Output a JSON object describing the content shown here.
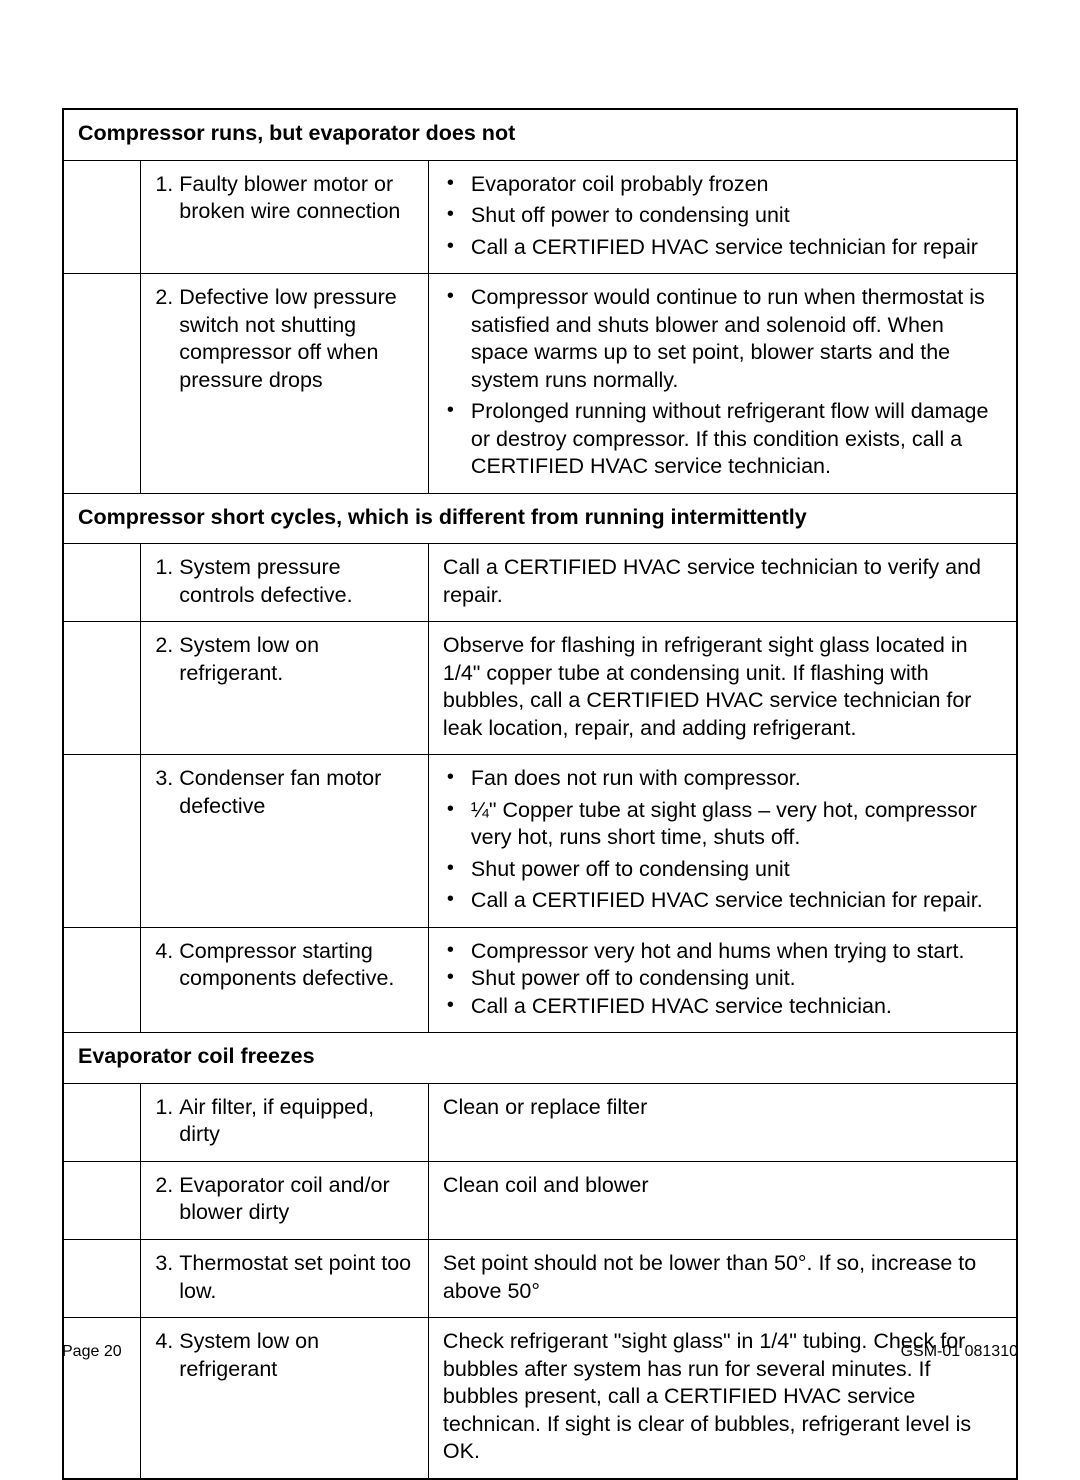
{
  "footer": {
    "left": "Page 20",
    "right": "GSM-01 081310"
  },
  "sections": [
    {
      "header": "Compressor runs, but evaporator does not",
      "rows": [
        {
          "num": "1.",
          "cause": "Faulty blower motor or broken wire connection",
          "action_type": "bullets",
          "bullets": [
            "Evaporator coil probably frozen",
            "Shut off power to condensing unit",
            "Call a CERTIFIED HVAC service technician for repair"
          ]
        },
        {
          "num": "2.",
          "cause": "Defective low pressure switch not shutting compressor off when pressure drops",
          "action_type": "bullets",
          "bullets": [
            "Compressor would continue to run when thermostat is satisfied and shuts blower and solenoid off. When space warms up to set point, blower starts and the system runs normally.",
            "Prolonged running without refrigerant flow will damage or destroy compressor. If this condition exists, call a CERTIFIED HVAC service technician."
          ]
        }
      ]
    },
    {
      "header": "Compressor short cycles, which is different from running intermittently",
      "rows": [
        {
          "num": "1.",
          "cause": "System pressure controls defective.",
          "action_type": "text",
          "text": "Call a CERTIFIED HVAC service technician to verify and repair."
        },
        {
          "num": "2.",
          "cause": "System low on refrigerant.",
          "action_type": "text",
          "text": "Observe for flashing in refrigerant sight glass located in 1/4\" copper tube at condensing unit. If flashing with bubbles, call a CERTIFIED HVAC service technician for leak location, repair, and adding refrigerant."
        },
        {
          "num": "3.",
          "cause": "Condenser fan motor defective",
          "action_type": "bullets",
          "bullets": [
            "Fan does not run with compressor.",
            "¼\" Copper tube at sight glass – very hot, compressor very hot, runs short time, shuts off.",
            "Shut power off to condensing unit",
            "Call a CERTIFIED HVAC service technician for repair."
          ]
        },
        {
          "num": "4.",
          "cause": "Compressor starting components defective.",
          "action_type": "bullets_tight",
          "bullets": [
            "Compressor very hot and hums when trying to start.",
            "Shut power off to condensing unit.",
            "Call a CERTIFIED HVAC service technician."
          ]
        }
      ]
    },
    {
      "header": "Evaporator coil freezes",
      "rows": [
        {
          "num": "1.",
          "cause": "Air filter, if equipped, dirty",
          "action_type": "text",
          "text": "Clean or replace filter"
        },
        {
          "num": "2.",
          "cause": "Evaporator coil and/or blower dirty",
          "action_type": "text",
          "text": "Clean coil and blower"
        },
        {
          "num": "3.",
          "cause": "Thermostat set point too low.",
          "action_type": "text",
          "text": "Set point should not be lower than 50°. If so, increase to above 50°"
        },
        {
          "num": "4.",
          "cause": "System low on refrigerant",
          "action_type": "text",
          "text": "Check refrigerant \"sight glass\" in 1/4\" tubing. Check for bubbles after system has run for several minutes. If bubbles present, call a CERTIFIED HVAC service technican. If sight is clear of bubbles, refrigerant level is OK."
        }
      ]
    }
  ]
}
